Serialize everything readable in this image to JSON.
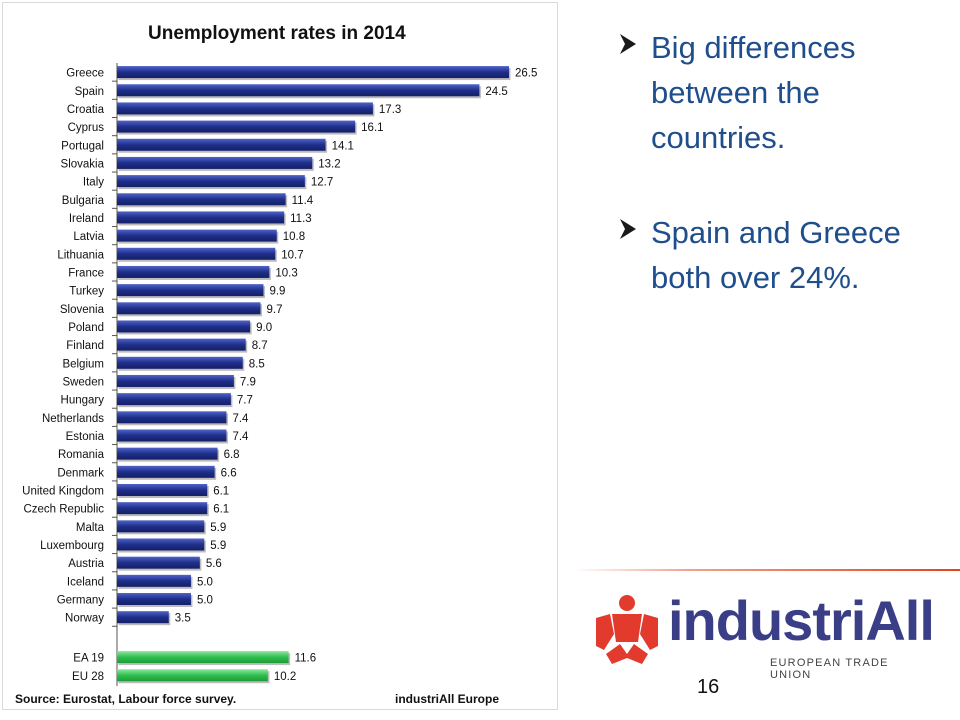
{
  "chart_data": {
    "type": "bar",
    "orientation": "horizontal",
    "title": "Unemployment rates in 2014",
    "categories": [
      "Greece",
      "Spain",
      "Croatia",
      "Cyprus",
      "Portugal",
      "Slovakia",
      "Italy",
      "Bulgaria",
      "Ireland",
      "Latvia",
      "Lithuania",
      "France",
      "Turkey",
      "Slovenia",
      "Poland",
      "Finland",
      "Belgium",
      "Sweden",
      "Hungary",
      "Netherlands",
      "Estonia",
      "Romania",
      "Denmark",
      "United Kingdom",
      "Czech Republic",
      "Malta",
      "Luxembourg",
      "Austria",
      "Iceland",
      "Germany",
      "Norway"
    ],
    "values": [
      26.5,
      24.5,
      17.3,
      16.1,
      14.1,
      13.2,
      12.7,
      11.4,
      11.3,
      10.8,
      10.7,
      10.3,
      9.9,
      9.7,
      9.0,
      8.7,
      8.5,
      7.9,
      7.7,
      7.4,
      7.4,
      6.8,
      6.6,
      6.1,
      6.1,
      5.9,
      5.9,
      5.6,
      5.0,
      5.0,
      3.5
    ],
    "value_labels": [
      "26.5",
      "24.5",
      "17.3",
      "16.1",
      "14.1",
      "13.2",
      "12.7",
      "11.4",
      "11.3",
      "10.8",
      "10.7",
      "10.3",
      "9.9",
      "9.7",
      "9.0",
      "8.7",
      "8.5",
      "7.9",
      "7.7",
      "7.4",
      "7.4",
      "6.8",
      "6.6",
      "6.1",
      "6.1",
      "5.9",
      "5.9",
      "5.6",
      "5.0",
      "5.0",
      "3.5"
    ],
    "aggregate_categories": [
      "EA 19",
      "EU 28"
    ],
    "aggregate_values": [
      11.6,
      10.2
    ],
    "aggregate_value_labels": [
      "11.6",
      "10.2"
    ],
    "xlim": [
      0,
      27
    ],
    "colors": {
      "country_bar": "#1f2f8a",
      "aggregate_bar": "#2fbf4f"
    },
    "grid": false,
    "legend": "none"
  },
  "source": "Source: Eurostat, Labour force survey.",
  "credit": "industriAll Europe",
  "bullets": [
    "Big differences between the countries.",
    "Spain and Greece both over 24%."
  ],
  "logo": {
    "name": "industriAll",
    "subtitle": "EUROPEAN TRADE UNION"
  },
  "page_number": "16"
}
